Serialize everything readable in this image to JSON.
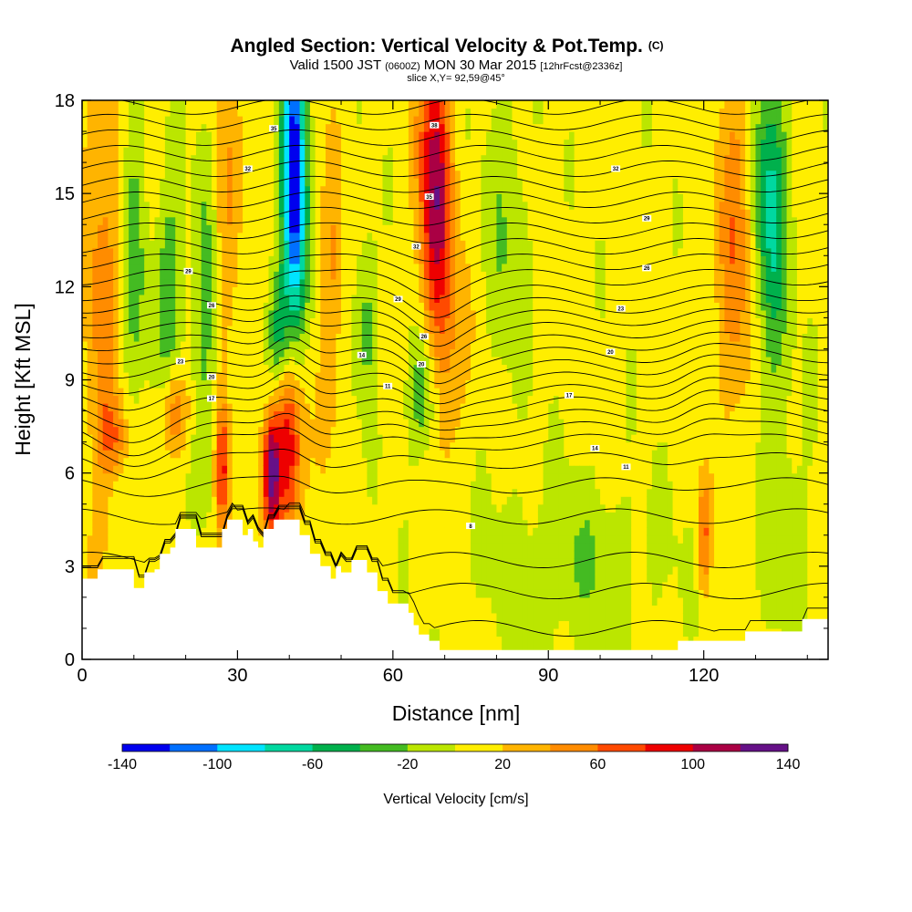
{
  "chart_data": {
    "type": "heatmap",
    "title": "Angled Section: Vertical Velocity & Pot.Temp.",
    "title_units": "(C)",
    "subtitle_parts": {
      "valid": "Valid 1500 JST",
      "utc": "(0600Z)",
      "date": "MON 30 Mar 2015",
      "forecast": "[12hrFcst@2336z]"
    },
    "slice_label": "slice X,Y= 92,59@45°",
    "xlabel": "Distance [nm]",
    "ylabel": "Height [Kft MSL]",
    "xlim": [
      0,
      144
    ],
    "ylim": [
      0,
      18
    ],
    "x_ticks": [
      0,
      30,
      60,
      90,
      120
    ],
    "y_ticks": [
      0,
      3,
      6,
      9,
      12,
      15,
      18
    ],
    "colorbar": {
      "title": "Vertical Velocity [cm/s]",
      "range": [
        -140,
        140
      ],
      "step": 20,
      "tick_labels": [
        -140,
        -100,
        -60,
        -20,
        20,
        60,
        100,
        140
      ],
      "colors": [
        "#0000ee",
        "#0070ff",
        "#00e4ff",
        "#00d8a0",
        "#00b04c",
        "#44bb22",
        "#bbe600",
        "#ffee00",
        "#ffb400",
        "#ff8c00",
        "#ff4a00",
        "#ee0000",
        "#aa0044",
        "#661188"
      ]
    },
    "terrain_profile": [
      [
        0,
        2.6
      ],
      [
        3,
        2.9
      ],
      [
        9,
        2.9
      ],
      [
        10,
        2.3
      ],
      [
        12,
        2.8
      ],
      [
        14,
        2.9
      ],
      [
        15,
        3.4
      ],
      [
        17,
        3.6
      ],
      [
        18,
        4.2
      ],
      [
        21,
        4.2
      ],
      [
        22,
        3.6
      ],
      [
        25,
        3.6
      ],
      [
        27,
        4.2
      ],
      [
        28,
        4.5
      ],
      [
        30,
        4.5
      ],
      [
        31,
        4.0
      ],
      [
        32,
        4.2
      ],
      [
        33,
        3.8
      ],
      [
        34,
        3.6
      ],
      [
        35,
        4.2
      ],
      [
        37,
        4.5
      ],
      [
        40,
        4.5
      ],
      [
        42,
        4.0
      ],
      [
        44,
        3.4
      ],
      [
        46,
        3.0
      ],
      [
        48,
        2.6
      ],
      [
        49,
        3.0
      ],
      [
        50,
        2.8
      ],
      [
        52,
        3.2
      ],
      [
        54,
        3.2
      ],
      [
        55,
        2.8
      ],
      [
        57,
        2.2
      ],
      [
        59,
        1.8
      ],
      [
        61,
        1.8
      ],
      [
        63,
        1.5
      ],
      [
        64,
        1.1
      ],
      [
        65,
        0.8
      ],
      [
        67,
        0.6
      ],
      [
        69,
        0.3
      ],
      [
        70,
        0.3
      ],
      [
        75,
        0.3
      ],
      [
        85,
        0.3
      ],
      [
        95,
        0.3
      ],
      [
        105,
        0.3
      ],
      [
        114,
        0.3
      ],
      [
        115,
        0.6
      ],
      [
        127,
        0.6
      ],
      [
        128,
        0.9
      ],
      [
        138,
        0.9
      ],
      [
        139,
        1.3
      ],
      [
        144,
        1.3
      ]
    ],
    "velocity_features": [
      {
        "x": 41,
        "sigma_x": 1.6,
        "y_center": 15.5,
        "sigma_y": 4,
        "w": -150,
        "tilt": 0
      },
      {
        "x": 38,
        "sigma_x": 1.4,
        "y_center": 10.5,
        "sigma_y": 1.5,
        "w": -60,
        "tilt": 0
      },
      {
        "x": 68,
        "sigma_x": 2.2,
        "y_center": 15.5,
        "sigma_y": 3.2,
        "w": 100,
        "tilt": 0
      },
      {
        "x": 70,
        "sigma_x": 2.6,
        "y_center": 10,
        "sigma_y": 3,
        "w": 40,
        "tilt": 0
      },
      {
        "x": 40,
        "sigma_x": 2,
        "y_center": 7,
        "sigma_y": 2.2,
        "w": 95,
        "tilt": 0
      },
      {
        "x": 36.5,
        "sigma_x": 1.2,
        "y_center": 6,
        "sigma_y": 1.4,
        "w": 115,
        "tilt": 0
      },
      {
        "x": 27,
        "sigma_x": 0.9,
        "y_center": 6,
        "sigma_y": 1.6,
        "w": 85,
        "tilt": 0
      },
      {
        "x": 24,
        "sigma_x": 1.8,
        "y_center": 11,
        "sigma_y": 3.5,
        "w": -40,
        "tilt": 0
      },
      {
        "x": 10,
        "sigma_x": 1.8,
        "y_center": 13,
        "sigma_y": 4,
        "w": -35,
        "tilt": 0
      },
      {
        "x": 17,
        "sigma_x": 2,
        "y_center": 12,
        "sigma_y": 2.5,
        "w": -45,
        "tilt": 0
      },
      {
        "x": 66,
        "sigma_x": 2.2,
        "y_center": 8.5,
        "sigma_y": 1.6,
        "w": -50,
        "tilt": 0
      },
      {
        "x": 55,
        "sigma_x": 1.5,
        "y_center": 11,
        "sigma_y": 2,
        "w": -40,
        "tilt": 0
      },
      {
        "x": 48,
        "sigma_x": 1.6,
        "y_center": 12,
        "sigma_y": 3,
        "w": 35,
        "tilt": 0
      },
      {
        "x": 28,
        "sigma_x": 2,
        "y_center": 14,
        "sigma_y": 3,
        "w": 35,
        "tilt": 0
      },
      {
        "x": 4,
        "sigma_x": 2.5,
        "y_center": 12,
        "sigma_y": 6,
        "w": 40,
        "tilt": 0
      },
      {
        "x": 133,
        "sigma_x": 2.2,
        "y_center": 14.5,
        "sigma_y": 3.5,
        "w": -75,
        "tilt": 0
      },
      {
        "x": 126,
        "sigma_x": 2.5,
        "y_center": 13.5,
        "sigma_y": 4.5,
        "w": 45,
        "tilt": 0
      },
      {
        "x": 120,
        "sigma_x": 0.8,
        "y_center": 4,
        "sigma_y": 1.3,
        "w": 60,
        "tilt": 0
      },
      {
        "x": 82,
        "sigma_x": 3,
        "y_center": 14,
        "sigma_y": 4,
        "w": -25,
        "tilt": 0
      },
      {
        "x": 95,
        "sigma_x": 12,
        "y_center": 3,
        "sigma_y": 2,
        "w": -25,
        "tilt": 0
      },
      {
        "x": 135,
        "sigma_x": 4,
        "y_center": 5,
        "sigma_y": 3,
        "w": -20,
        "tilt": 0
      },
      {
        "x": 18,
        "sigma_x": 2,
        "y_center": 8,
        "sigma_y": 1,
        "w": 55,
        "tilt": 0
      },
      {
        "x": 6,
        "sigma_x": 2,
        "y_center": 7.2,
        "sigma_y": 0.8,
        "w": 40,
        "tilt": 0
      }
    ],
    "theta_contours": {
      "base_levels_kft": [
        1.0,
        2.2,
        3.2,
        4.6,
        5.6,
        6.4,
        7.0,
        7.4,
        7.8,
        8.2,
        8.6,
        9.0,
        9.4,
        9.8,
        10.2,
        10.6,
        11.0,
        11.4,
        11.8,
        12.3,
        12.8,
        13.3,
        13.8,
        14.3,
        14.8,
        15.3,
        15.8,
        16.3,
        16.8,
        17.3,
        17.8
      ],
      "labels": [
        {
          "x": 19,
          "y": 9.6,
          "text": "23"
        },
        {
          "x": 25,
          "y": 11.4,
          "text": "26"
        },
        {
          "x": 20.5,
          "y": 12.5,
          "text": "29"
        },
        {
          "x": 25,
          "y": 9.1,
          "text": "20"
        },
        {
          "x": 25,
          "y": 8.4,
          "text": "17"
        },
        {
          "x": 32,
          "y": 15.8,
          "text": "32"
        },
        {
          "x": 37,
          "y": 17.1,
          "text": "35"
        },
        {
          "x": 54,
          "y": 9.8,
          "text": "14"
        },
        {
          "x": 59,
          "y": 8.8,
          "text": "11"
        },
        {
          "x": 61,
          "y": 11.6,
          "text": "29"
        },
        {
          "x": 66,
          "y": 10.4,
          "text": "26"
        },
        {
          "x": 65.5,
          "y": 9.5,
          "text": "20"
        },
        {
          "x": 64.5,
          "y": 13.3,
          "text": "32"
        },
        {
          "x": 67,
          "y": 14.9,
          "text": "35"
        },
        {
          "x": 68,
          "y": 17.2,
          "text": "38"
        },
        {
          "x": 75,
          "y": 4.3,
          "text": "8"
        },
        {
          "x": 94,
          "y": 8.5,
          "text": "17"
        },
        {
          "x": 99,
          "y": 6.8,
          "text": "14"
        },
        {
          "x": 105,
          "y": 6.2,
          "text": "11"
        },
        {
          "x": 102,
          "y": 9.9,
          "text": "20"
        },
        {
          "x": 104,
          "y": 11.3,
          "text": "23"
        },
        {
          "x": 109,
          "y": 12.6,
          "text": "26"
        },
        {
          "x": 109,
          "y": 14.2,
          "text": "29"
        },
        {
          "x": 103,
          "y": 15.8,
          "text": "32"
        }
      ]
    }
  }
}
